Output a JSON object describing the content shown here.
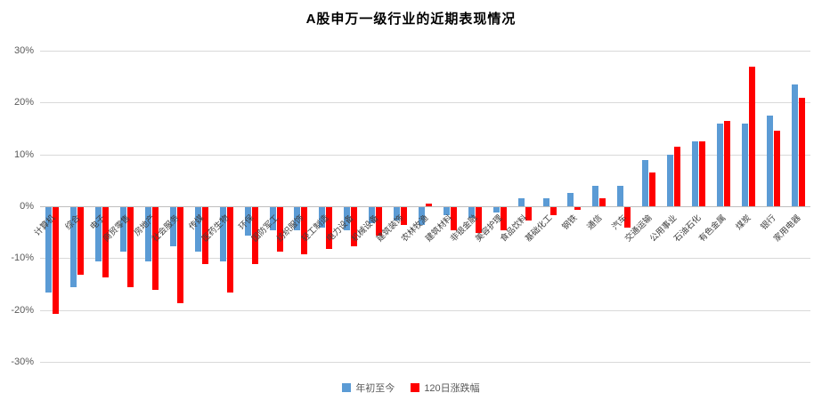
{
  "title": "A股申万一级行业的近期表现情况",
  "colors": {
    "series_ytd": "#5b9bd5",
    "series_120d": "#ff0000",
    "gridline": "#d9d9d9",
    "zero_axis": "#bfbfbf",
    "axis_text": "#595959",
    "label_text": "#3f3f3f"
  },
  "chart_data": {
    "type": "bar",
    "title": "A股申万一级行业的近期表现情况",
    "xlabel": "",
    "ylabel": "",
    "ylim": [
      -30,
      30
    ],
    "grid": true,
    "legend_position": "bottom",
    "yticks": [
      30,
      20,
      10,
      0,
      -10,
      -20,
      -30
    ],
    "ytick_labels": [
      "30%",
      "20%",
      "10%",
      "0%",
      "-10%",
      "-20%",
      "-30%"
    ],
    "categories": [
      "计算机",
      "综合",
      "电子",
      "商贸零售",
      "房地产",
      "社会服务",
      "传媒",
      "医药生物",
      "环保",
      "国防军工",
      "纺织服饰",
      "轻工制造",
      "电力设备",
      "机械设备",
      "建筑装饰",
      "农林牧渔",
      "建筑材料",
      "非银金融",
      "美容护理",
      "食品饮料",
      "基础化工",
      "钢铁",
      "通信",
      "汽车",
      "交通运输",
      "公用事业",
      "石油石化",
      "有色金属",
      "煤炭",
      "银行",
      "家用电器"
    ],
    "series": [
      {
        "name": "年初至今",
        "color": "#5b9bd5",
        "values": [
          -16.5,
          -15.5,
          -10.5,
          -8.5,
          -10.5,
          -7.5,
          -8.5,
          -10.5,
          -5.5,
          -4.5,
          -4.5,
          -4,
          -4.5,
          -3,
          -2.5,
          -3.5,
          -1.5,
          -2,
          -1,
          1.5,
          1.5,
          2.5,
          4,
          4,
          9,
          10,
          12.5,
          16,
          16,
          17.5,
          23.5
        ]
      },
      {
        "name": "120日涨跌幅",
        "color": "#ff0000",
        "values": [
          -20.5,
          -13,
          -13.5,
          -15.5,
          -16,
          -18.5,
          -11,
          -16.5,
          -11,
          -8.5,
          -9,
          -8,
          -7.5,
          -5.5,
          -3.5,
          0.5,
          -4.5,
          -5,
          -4.5,
          -2.5,
          -1.5,
          -0.5,
          1.5,
          -4,
          6.5,
          11.5,
          12.5,
          16.5,
          27,
          14.5,
          21
        ]
      }
    ]
  }
}
